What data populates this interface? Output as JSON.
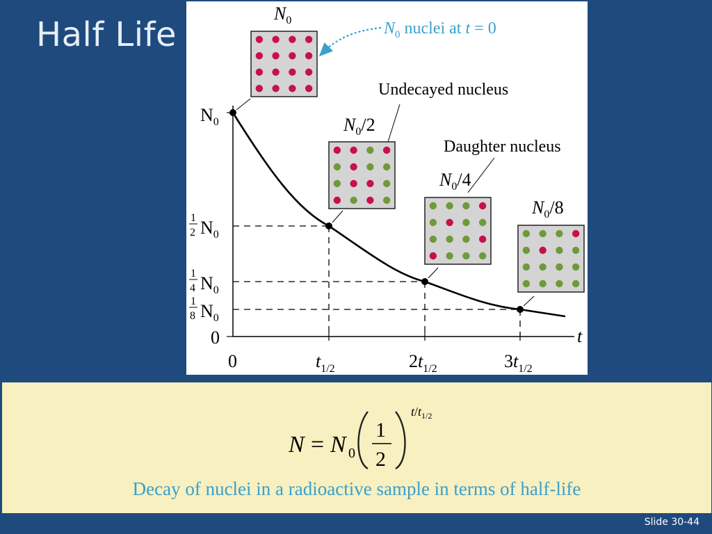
{
  "slide": {
    "title": "Half Life",
    "slide_number": "Slide 30-44"
  },
  "figure": {
    "annotation_nuclei": "nuclei at",
    "annotation_t": "t",
    "annotation_eq": " = 0",
    "label_undecayed": "Undecayed nucleus",
    "label_daughter": "Daughter nucleus",
    "box_labels": [
      "/2",
      "/4",
      "/8"
    ],
    "N": "N",
    "sub0": "0",
    "axis_t": "t",
    "origin_x": "0",
    "origin_y": "0",
    "half_frac": "1",
    "sub_half": "1/2",
    "x_tick_coef": [
      "",
      "2",
      "3"
    ],
    "y_tick_den": [
      "2",
      "4",
      "8"
    ],
    "colors": {
      "undecayed": "#c8104a",
      "daughter": "#6e9a3c",
      "box_fill": "#d4d4d4",
      "annotation": "#3aa0cc"
    }
  },
  "formula": {
    "lhs": "N",
    "eq": "=",
    "rhs_N": "N",
    "rhs_sub": "0",
    "frac_num": "1",
    "frac_den": "2",
    "exp_t": "t",
    "exp_slash": "/",
    "exp_t2": "t",
    "exp_sub": "1/2"
  },
  "caption": "Decay of nuclei in a radioactive sample in terms of half-life"
}
